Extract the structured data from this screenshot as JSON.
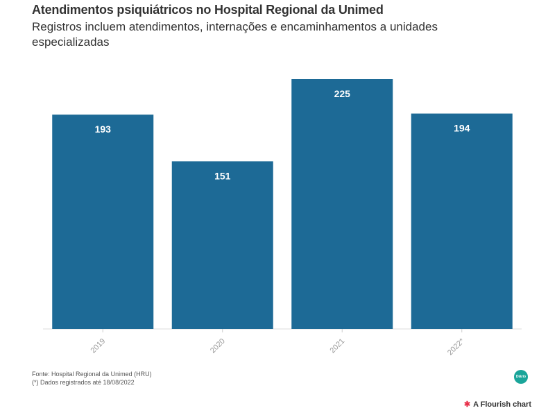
{
  "chart_data": {
    "type": "bar",
    "title": "Atendimentos psiquiátricos no Hospital Regional da Unimed",
    "subtitle": "Registros incluem atendimentos, internações e encaminhamentos a unidades especializadas",
    "categories": [
      "2019",
      "2020",
      "2021",
      "2022*"
    ],
    "values": [
      193,
      151,
      225,
      194
    ],
    "ylim": [
      0,
      235
    ],
    "bar_color": "#1d6a96",
    "label_color": "#ffffff",
    "grid": false,
    "data_labels": true
  },
  "footer": {
    "source": "Fonte: Hospital Regional da Unimed (HRU)",
    "note": "(*) Dados registrados até 18/08/2022"
  },
  "logo_text": "Diário",
  "flourish_credit": "A Flourish chart",
  "icons": {
    "publisher": "publisher-logo-icon",
    "flourish": "flourish-star-icon"
  }
}
